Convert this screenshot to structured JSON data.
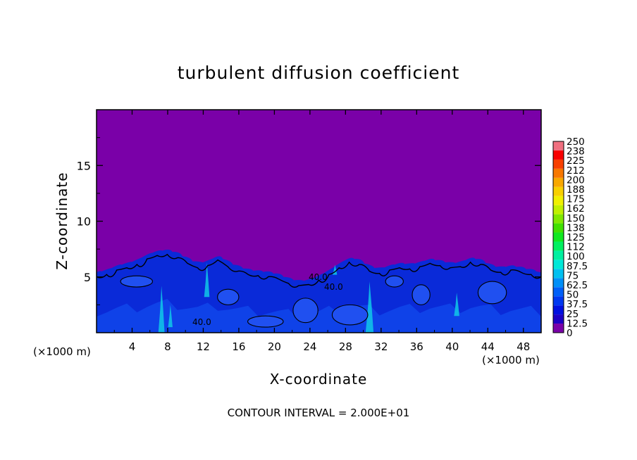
{
  "chart_data": {
    "type": "heatmap",
    "title": "turbulent diffusion coefficient",
    "xlabel": "X-coordinate",
    "ylabel": "Z-coordinate",
    "x_unit_left": "(×1000 m)",
    "x_unit_right": "(×1000 m)",
    "xlim": [
      0,
      50
    ],
    "ylim": [
      0,
      20
    ],
    "x_ticks": [
      "4",
      "8",
      "12",
      "16",
      "20",
      "24",
      "28",
      "32",
      "36",
      "40",
      "44",
      "48"
    ],
    "y_ticks": [
      "5",
      "10",
      "15"
    ],
    "colorbar_labels": [
      "0",
      "12.5",
      "25",
      "37.5",
      "50",
      "62.5",
      "75",
      "87.5",
      "100",
      "112",
      "125",
      "138",
      "150",
      "162",
      "175",
      "188",
      "200",
      "212",
      "225",
      "238",
      "250"
    ],
    "colorbar_colors": [
      "#7a00a8",
      "#1c00c4",
      "#0010e0",
      "#0038f0",
      "#0060f8",
      "#0090f8",
      "#00c0f0",
      "#00e8d8",
      "#00f0a0",
      "#00f060",
      "#10e820",
      "#40e000",
      "#80e800",
      "#c0f000",
      "#f0f000",
      "#f8d000",
      "#f8a800",
      "#f87800",
      "#f84000",
      "#f80000",
      "#f07080"
    ],
    "background_color": "#7a00a8",
    "turbulent_layer_top_km": [
      5.4,
      5.6,
      6.0,
      6.2,
      6.5,
      7.0,
      7.3,
      7.4,
      7.1,
      6.6,
      6.2,
      6.4,
      6.9,
      6.3,
      5.9,
      5.6,
      5.5,
      5.4,
      5.2,
      4.8,
      4.6,
      4.7,
      5.1,
      5.6,
      6.2,
      6.7,
      6.5,
      5.9,
      5.7,
      6.0,
      6.2,
      6.1,
      6.3,
      6.6,
      6.4,
      6.2,
      6.3,
      6.7,
      6.5,
      6.0,
      5.8,
      6.0,
      5.8,
      5.6,
      5.4
    ],
    "contour_labels": [
      "40.0",
      "40.0",
      "40.0"
    ],
    "contour_interval_text": "CONTOUR INTERVAL = 2.000E+01"
  }
}
